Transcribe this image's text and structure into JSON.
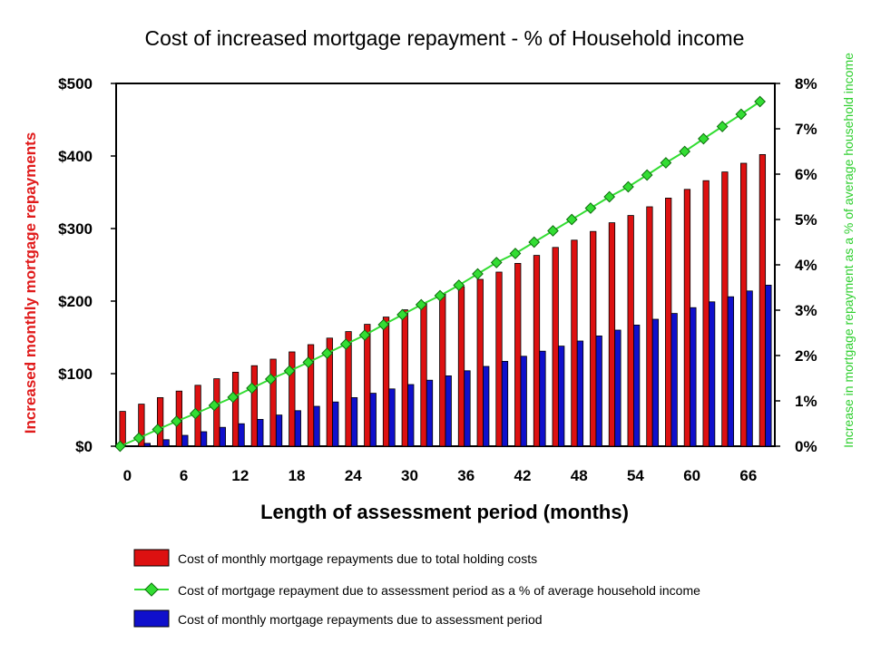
{
  "chart_data": {
    "type": "bar",
    "title": "Cost of increased mortgage repayment - % of Household income",
    "xlabel": "Length of assessment period (months)",
    "ylabel_left": "Increased monthly mortgage repayments",
    "ylabel_right": "Increase in mortgage repayment as a % of average household income",
    "y_left_ticks": [
      "$0",
      "$100",
      "$200",
      "$300",
      "$400",
      "$500"
    ],
    "y_right_ticks": [
      "0%",
      "1%",
      "2%",
      "3%",
      "4%",
      "5%",
      "6%",
      "7%",
      "8%"
    ],
    "x_ticks": [
      "0",
      "6",
      "12",
      "18",
      "24",
      "30",
      "36",
      "42",
      "48",
      "54",
      "60",
      "66"
    ],
    "ylim_left": [
      0,
      500
    ],
    "ylim_right": [
      0,
      8
    ],
    "x": [
      0,
      2,
      4,
      6,
      8,
      10,
      12,
      14,
      16,
      18,
      20,
      22,
      24,
      26,
      28,
      30,
      32,
      34,
      36,
      38,
      40,
      42,
      44,
      46,
      48,
      50,
      52,
      54,
      56,
      58,
      60,
      62,
      64,
      66,
      68
    ],
    "series": [
      {
        "name": "Cost of monthly mortgage repayments due to total holding costs",
        "kind": "bar",
        "axis": "left",
        "color": "#dd1111",
        "values": [
          48,
          58,
          67,
          76,
          84,
          93,
          102,
          111,
          120,
          130,
          140,
          149,
          158,
          168,
          178,
          188,
          198,
          210,
          220,
          230,
          240,
          252,
          263,
          274,
          284,
          296,
          308,
          318,
          330,
          342,
          354,
          366,
          378,
          390,
          402
        ]
      },
      {
        "name": "Cost of mortgage repayment due to assessment period as a % of average household income",
        "kind": "line",
        "axis": "right",
        "color": "#33dd33",
        "values": [
          0.0,
          0.18,
          0.37,
          0.55,
          0.72,
          0.9,
          1.08,
          1.28,
          1.48,
          1.66,
          1.85,
          2.05,
          2.25,
          2.45,
          2.68,
          2.9,
          3.12,
          3.32,
          3.55,
          3.8,
          4.05,
          4.25,
          4.5,
          4.75,
          5.0,
          5.25,
          5.5,
          5.72,
          5.98,
          6.25,
          6.5,
          6.78,
          7.05,
          7.32,
          7.6
        ]
      },
      {
        "name": "Cost of monthly mortgage repayments due to assessment period",
        "kind": "bar",
        "axis": "left",
        "color": "#1010cc",
        "values": [
          0,
          4,
          9,
          15,
          20,
          26,
          31,
          37,
          43,
          49,
          55,
          61,
          67,
          73,
          79,
          85,
          91,
          97,
          104,
          110,
          117,
          124,
          131,
          138,
          145,
          152,
          160,
          167,
          175,
          183,
          191,
          199,
          206,
          214,
          222
        ]
      }
    ],
    "legend_position": "bottom",
    "grid": false
  }
}
